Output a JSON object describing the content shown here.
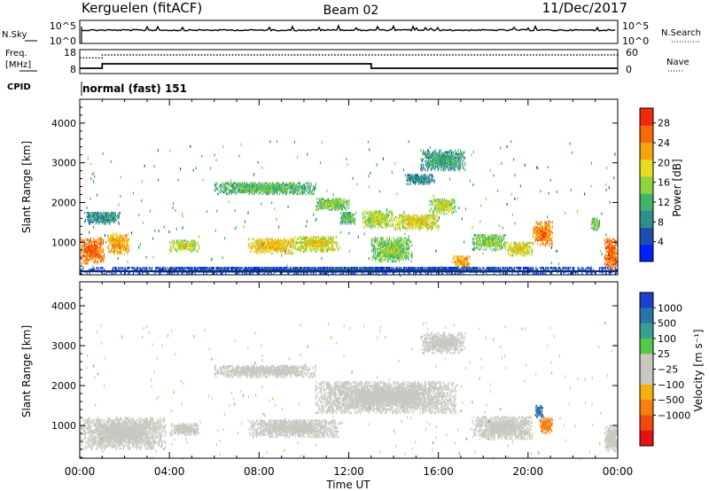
{
  "header": {
    "station": "Kerguelen (fitACF)",
    "beam": "Beam 02",
    "date": "11/Dec/2017"
  },
  "strip_nsky": {
    "left_label": "N.Sky",
    "left_ticks": [
      "10^5",
      "10^0"
    ],
    "right_label": "N.Search",
    "right_ticks": [
      "10^5",
      "10^0"
    ]
  },
  "strip_freq": {
    "left_label_1": "Freq.",
    "left_label_2": "[MHz]",
    "left_ticks": [
      "18",
      "8"
    ],
    "right_label": "Nave",
    "right_ticks": [
      "60",
      "0"
    ],
    "freq_series_mhz": {
      "x_hours": [
        0,
        1.0,
        1.0,
        13.0,
        13.0,
        24
      ],
      "y": [
        10,
        10,
        12,
        12,
        10,
        10
      ]
    },
    "nave_series": {
      "x_hours": [
        0,
        1.0,
        1.0,
        24
      ],
      "y": [
        40,
        40,
        48,
        48
      ]
    }
  },
  "cpid": {
    "label": "CPID",
    "value": "normal (fast) 151"
  },
  "chart_data": [
    {
      "type": "heatmap",
      "panel": "power",
      "ylabel": "Slant Range [km]",
      "xlabel": "",
      "xlim_hours": [
        0,
        24
      ],
      "ylim_km": [
        180,
        4600
      ],
      "x_ticks": [
        "00:00",
        "04:00",
        "08:00",
        "12:00",
        "16:00",
        "20:00",
        "00:00"
      ],
      "y_ticks": [
        1000,
        2000,
        3000,
        4000
      ],
      "colorbar": {
        "label": "Power [dB]",
        "tick_values": [
          4,
          8,
          12,
          16,
          20,
          24,
          28
        ],
        "tick_labels": [
          "4",
          "8",
          "12",
          "16",
          "20",
          "24",
          "28"
        ],
        "range": [
          0,
          31
        ],
        "colors": [
          "#0020ff",
          "#1a4fb0",
          "#2e8f8a",
          "#3fb56a",
          "#8ed33a",
          "#e8dc20",
          "#f7a30f",
          "#f56a0a",
          "#ee2a0a"
        ]
      },
      "echo_regions": [
        {
          "t0": 0.0,
          "t1": 1.1,
          "r0": 450,
          "r1": 1100,
          "value": 27
        },
        {
          "t0": 1.2,
          "t1": 2.2,
          "r0": 700,
          "r1": 1200,
          "value": 24
        },
        {
          "t0": 0.2,
          "t1": 1.8,
          "r0": 1450,
          "r1": 1750,
          "value": 10
        },
        {
          "t0": 4.0,
          "t1": 5.3,
          "r0": 750,
          "r1": 1050,
          "value": 18
        },
        {
          "t0": 6.0,
          "t1": 10.5,
          "r0": 2200,
          "r1": 2500,
          "value": 14
        },
        {
          "t0": 7.5,
          "t1": 9.6,
          "r0": 700,
          "r1": 1100,
          "value": 22
        },
        {
          "t0": 9.6,
          "t1": 11.5,
          "r0": 750,
          "r1": 1150,
          "value": 20
        },
        {
          "t0": 10.5,
          "t1": 12.0,
          "r0": 1800,
          "r1": 2100,
          "value": 16
        },
        {
          "t0": 11.6,
          "t1": 12.3,
          "r0": 1450,
          "r1": 1750,
          "value": 14
        },
        {
          "t0": 12.6,
          "t1": 14.0,
          "r0": 1350,
          "r1": 1800,
          "value": 18
        },
        {
          "t0": 14.0,
          "t1": 16.0,
          "r0": 1300,
          "r1": 1700,
          "value": 20
        },
        {
          "t0": 15.6,
          "t1": 16.8,
          "r0": 1700,
          "r1": 2100,
          "value": 18
        },
        {
          "t0": 14.5,
          "t1": 15.8,
          "r0": 2450,
          "r1": 2700,
          "value": 10
        },
        {
          "t0": 15.2,
          "t1": 17.2,
          "r0": 2800,
          "r1": 3300,
          "value": 12
        },
        {
          "t0": 13.0,
          "t1": 14.8,
          "r0": 500,
          "r1": 1100,
          "value": 16
        },
        {
          "t0": 16.6,
          "t1": 17.4,
          "r0": 350,
          "r1": 650,
          "value": 24
        },
        {
          "t0": 17.5,
          "t1": 19.0,
          "r0": 800,
          "r1": 1200,
          "value": 16
        },
        {
          "t0": 19.0,
          "t1": 20.2,
          "r0": 650,
          "r1": 1000,
          "value": 20
        },
        {
          "t0": 20.2,
          "t1": 21.1,
          "r0": 900,
          "r1": 1500,
          "value": 26
        },
        {
          "t0": 22.8,
          "t1": 23.2,
          "r0": 1300,
          "r1": 1600,
          "value": 16
        },
        {
          "t0": 23.4,
          "t1": 24.0,
          "r0": 300,
          "r1": 1100,
          "value": 27
        },
        {
          "t0": 0.0,
          "t1": 24.0,
          "r0": 200,
          "r1": 380,
          "value": 6
        }
      ]
    },
    {
      "type": "heatmap",
      "panel": "velocity",
      "ylabel": "Slant Range [km]",
      "xlabel": "Time UT",
      "xlim_hours": [
        0,
        24
      ],
      "ylim_km": [
        180,
        4600
      ],
      "x_ticks": [
        "00:00",
        "04:00",
        "08:00",
        "12:00",
        "16:00",
        "20:00",
        "00:00"
      ],
      "y_ticks": [
        1000,
        2000,
        3000,
        4000
      ],
      "colorbar": {
        "label": "Velocity [m s⁻¹]",
        "tick_labels": [
          "1000",
          "500",
          "100",
          "25",
          "−25",
          "−100",
          "−500",
          "−1000"
        ],
        "colors": [
          "#1f3fd0",
          "#2a73a8",
          "#38a08e",
          "#55c848",
          "#c8c8c0",
          "#c8c8c0",
          "#f4b010",
          "#f77f10",
          "#f04a10",
          "#e81010"
        ]
      },
      "echo_regions": [
        {
          "t0": 0.0,
          "t1": 3.8,
          "r0": 400,
          "r1": 1200,
          "value": 0
        },
        {
          "t0": 4.0,
          "t1": 5.3,
          "r0": 750,
          "r1": 1050,
          "value": 0
        },
        {
          "t0": 6.0,
          "t1": 10.5,
          "r0": 2200,
          "r1": 2500,
          "value": 0
        },
        {
          "t0": 7.5,
          "t1": 11.5,
          "r0": 700,
          "r1": 1150,
          "value": 0
        },
        {
          "t0": 10.5,
          "t1": 16.8,
          "r0": 1300,
          "r1": 2100,
          "value": 0
        },
        {
          "t0": 15.2,
          "t1": 17.2,
          "r0": 2800,
          "r1": 3300,
          "value": 0
        },
        {
          "t0": 17.5,
          "t1": 20.2,
          "r0": 650,
          "r1": 1200,
          "value": 0
        },
        {
          "t0": 20.5,
          "t1": 21.1,
          "r0": 800,
          "r1": 1200,
          "value": -300
        },
        {
          "t0": 20.3,
          "t1": 20.7,
          "r0": 1200,
          "r1": 1500,
          "value": 600
        },
        {
          "t0": 23.4,
          "t1": 24.0,
          "r0": 350,
          "r1": 1000,
          "value": 0
        }
      ]
    }
  ]
}
